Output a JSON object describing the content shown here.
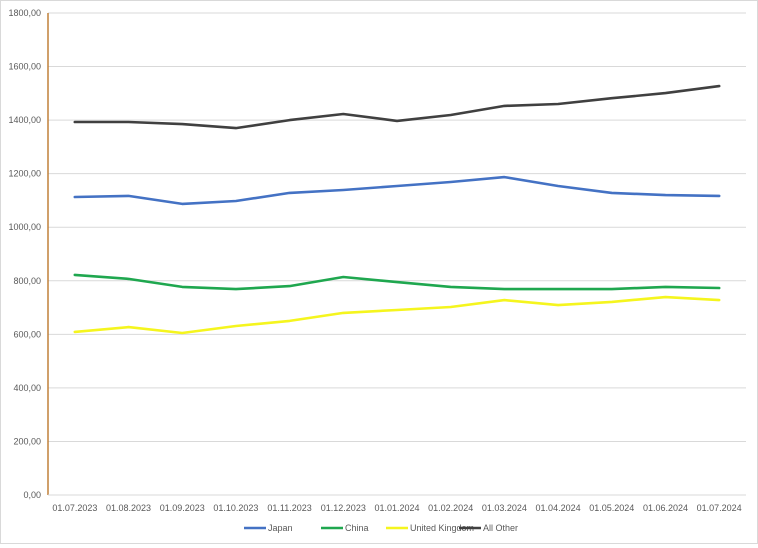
{
  "chart_data": {
    "type": "line",
    "title": "",
    "xlabel": "",
    "ylabel": "",
    "ylim": [
      0,
      1800
    ],
    "ytick_step": 200,
    "yticks": [
      "0,00",
      "200,00",
      "400,00",
      "600,00",
      "800,00",
      "1000,00",
      "1200,00",
      "1400,00",
      "1600,00",
      "1800,00"
    ],
    "grid": true,
    "legend_position": "bottom",
    "categories": [
      "01.07.2023",
      "01.08.2023",
      "01.09.2023",
      "01.10.2023",
      "01.11.2023",
      "01.12.2023",
      "01.01.2024",
      "01.02.2024",
      "01.03.2024",
      "01.04.2024",
      "01.05.2024",
      "01.06.2024",
      "01.07.2024"
    ],
    "series": [
      {
        "name": "Japan",
        "color": "#4472c4",
        "values": [
          1113,
          1117,
          1087,
          1098,
          1128,
          1139,
          1154,
          1169,
          1187,
          1154,
          1128,
          1120,
          1117
        ]
      },
      {
        "name": "China",
        "color": "#1fa74f",
        "values": [
          822,
          807,
          777,
          769,
          780,
          814,
          795,
          777,
          769,
          769,
          769,
          777,
          773
        ]
      },
      {
        "name": "United Kingdom",
        "color": "#f5f51e",
        "values": [
          609,
          627,
          605,
          631,
          650,
          680,
          691,
          702,
          728,
          709,
          721,
          739,
          728
        ]
      },
      {
        "name": "All Other",
        "color": "#404040",
        "values": [
          1393,
          1393,
          1385,
          1370,
          1400,
          1423,
          1397,
          1419,
          1453,
          1460,
          1482,
          1501,
          1527
        ]
      }
    ]
  }
}
